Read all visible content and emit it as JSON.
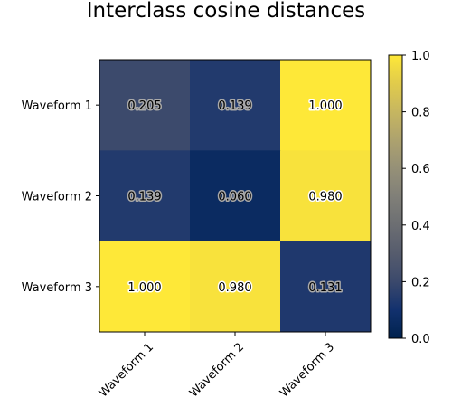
{
  "chart_data": {
    "type": "heatmap",
    "title": "Interclass cosine distances",
    "xlabel": "",
    "ylabel": "",
    "x_categories": [
      "Waveform 1",
      "Waveform 2",
      "Waveform 3"
    ],
    "y_categories": [
      "Waveform 1",
      "Waveform 2",
      "Waveform 3"
    ],
    "values": [
      [
        0.205,
        0.139,
        1.0
      ],
      [
        0.139,
        0.06,
        0.98
      ],
      [
        1.0,
        0.98,
        0.131
      ]
    ],
    "value_labels": [
      [
        "0.205",
        "0.139",
        "1.000"
      ],
      [
        "0.139",
        "0.060",
        "0.980"
      ],
      [
        "1.000",
        "0.980",
        "0.131"
      ]
    ],
    "colormap": "cividis",
    "vmin": 0.0,
    "vmax": 1.0,
    "colorbar_ticks": [
      0.0,
      0.2,
      0.4,
      0.6,
      0.8,
      1.0
    ],
    "colorbar_tick_labels": [
      "0.0",
      "0.2",
      "0.4",
      "0.6",
      "0.8",
      "1.0"
    ],
    "x_tick_rotation": 45,
    "grid": false,
    "colorbar_position": "right"
  }
}
